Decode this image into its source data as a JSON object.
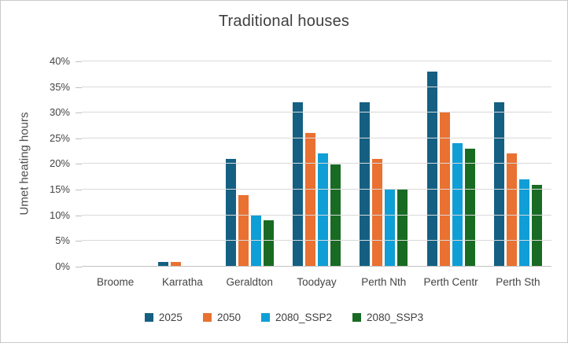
{
  "window": {
    "background": "#ffffff",
    "border_color": "#c9c9c9"
  },
  "chart_data": {
    "type": "bar",
    "title": "Traditional houses",
    "xlabel": "",
    "ylabel": "Umet heating hours",
    "categories": [
      "Broome",
      "Karratha",
      "Geraldton",
      "Toodyay",
      "Perth Nth",
      "Perth Centr",
      "Perth Sth"
    ],
    "series": [
      {
        "name": "2025",
        "color": "#156082",
        "values": [
          0,
          1,
          21,
          32,
          32,
          38,
          32
        ]
      },
      {
        "name": "2050",
        "color": "#E97132",
        "values": [
          0,
          1,
          14,
          26,
          21,
          30,
          22
        ]
      },
      {
        "name": "2080_SSP2",
        "color": "#0F9ED5",
        "values": [
          0,
          0,
          10,
          22,
          15,
          24,
          17
        ]
      },
      {
        "name": "2080_SSP3",
        "color": "#196B24",
        "values": [
          0,
          0,
          9,
          20,
          15,
          23,
          16
        ]
      }
    ],
    "ylim": [
      0,
      40
    ],
    "ytick_step": 5,
    "ytick_labels": [
      "0%",
      "5%",
      "10%",
      "15%",
      "20%",
      "25%",
      "30%",
      "35%",
      "40%"
    ],
    "yticks_unit": "percent",
    "grid": true,
    "legend_position": "bottom",
    "colors": {
      "text": "#404040",
      "gridline": "#d9d9d9",
      "axis_line": "#c2c2c2",
      "tick_mark": "#bfbfbf"
    }
  }
}
